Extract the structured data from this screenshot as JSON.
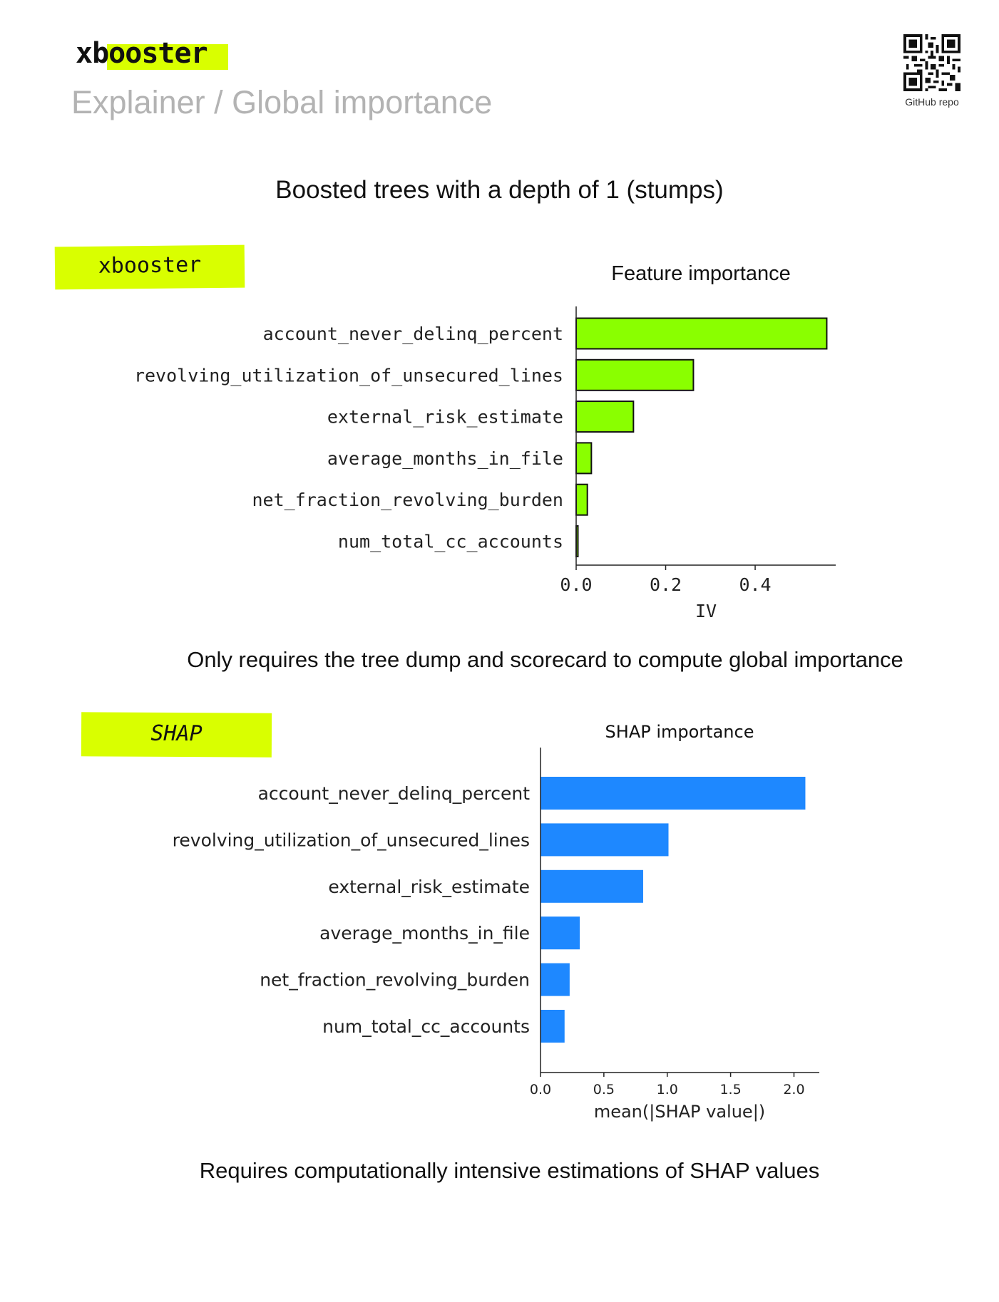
{
  "header": {
    "brand": "xbooster",
    "subtitle": "Explainer / Global importance",
    "qr_caption": "GitHub repo",
    "qr_icon": "qr-code-icon"
  },
  "main": {
    "heading": "Boosted trees with a depth of 1 (stumps)",
    "section1_tag": "xbooster",
    "section1_caption": "Only requires the tree dump and scorecard to compute global importance",
    "section2_tag": "SHAP",
    "section2_caption": "Requires computationally intensive estimations of SHAP values"
  },
  "colors": {
    "accent": "#d9ff00",
    "iv_bar": "#8aff00",
    "shap_bar": "#1e88ff"
  },
  "chart_data": [
    {
      "type": "bar",
      "orientation": "horizontal",
      "title": "Feature importance",
      "xlabel": "IV",
      "ylabel": "",
      "categories": [
        "account_never_delinq_percent",
        "revolving_utilization_of_unsecured_lines",
        "external_risk_estimate",
        "average_months_in_file",
        "net_fraction_revolving_burden",
        "num_total_cc_accounts"
      ],
      "values": [
        0.56,
        0.262,
        0.128,
        0.034,
        0.025,
        0.004
      ],
      "xlim": [
        0,
        0.58
      ],
      "xticks": [
        "0.0",
        "0.2",
        "0.4"
      ],
      "grid": false
    },
    {
      "type": "bar",
      "orientation": "horizontal",
      "title": "SHAP importance",
      "xlabel": "mean(|SHAP value|)",
      "ylabel": "",
      "categories": [
        "account_never_delinq_percent",
        "revolving_utilization_of_unsecured_lines",
        "external_risk_estimate",
        "average_months_in_file",
        "net_fraction_revolving_burden",
        "num_total_cc_accounts"
      ],
      "values": [
        2.09,
        1.01,
        0.81,
        0.31,
        0.23,
        0.19
      ],
      "xlim": [
        0,
        2.2
      ],
      "xticks": [
        "0.0",
        "0.5",
        "1.0",
        "1.5",
        "2.0"
      ],
      "grid": false
    }
  ]
}
